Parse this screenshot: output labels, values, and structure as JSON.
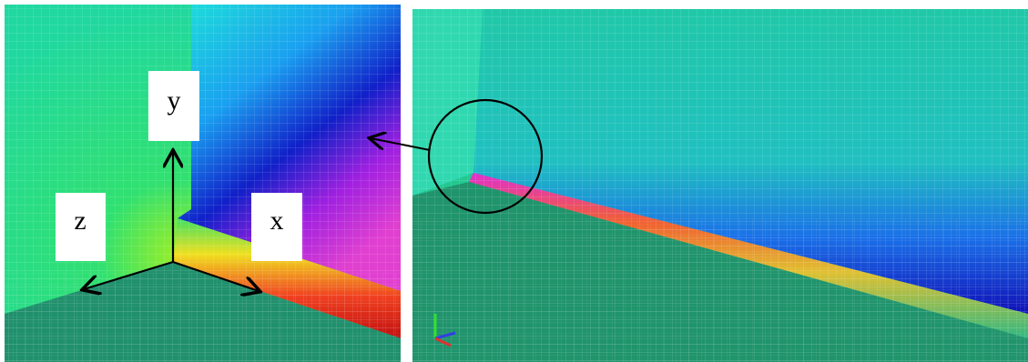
{
  "labels": {
    "y": "y",
    "z": "z",
    "x": "x"
  }
}
